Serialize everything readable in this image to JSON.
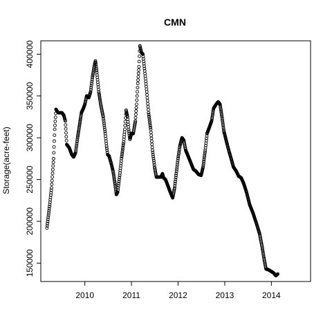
{
  "chart_data": {
    "type": "scatter",
    "title": "CMN",
    "xlabel": "",
    "ylabel": "Storage(acre-feet)",
    "x_ticks": [
      "2010",
      "2011",
      "2012",
      "2013",
      "2014"
    ],
    "y_ticks": [
      150000,
      200000,
      250000,
      300000,
      350000,
      400000
    ],
    "y_tick_labels": [
      "150000",
      "200000",
      "250000",
      "300000",
      "350000",
      "400000"
    ],
    "xlim": [
      "2009-01-21",
      "2014-11-04"
    ],
    "ylim": [
      128000,
      416000
    ],
    "grid": false,
    "marker": "open circle",
    "colors": {
      "points": "#000000",
      "axis": "#000000",
      "background": "#ffffff"
    },
    "series": [
      {
        "points": [
          [
            "2009-03-10",
            192000
          ],
          [
            "2009-03-20",
            205000
          ],
          [
            "2009-04-01",
            220000
          ],
          [
            "2009-04-15",
            240000
          ],
          [
            "2009-05-01",
            275000
          ],
          [
            "2009-05-10",
            310000
          ],
          [
            "2009-05-20",
            334000
          ],
          [
            "2009-06-05",
            330000
          ],
          [
            "2009-06-20",
            330000
          ],
          [
            "2009-07-05",
            330000
          ],
          [
            "2009-07-20",
            327000
          ],
          [
            "2009-08-01",
            320000
          ],
          [
            "2009-08-12",
            292000
          ],
          [
            "2009-09-01",
            288000
          ],
          [
            "2009-09-20",
            280000
          ],
          [
            "2009-10-05",
            277000
          ],
          [
            "2009-10-20",
            282000
          ],
          [
            "2009-11-05",
            300000
          ],
          [
            "2009-11-20",
            315000
          ],
          [
            "2009-12-05",
            330000
          ],
          [
            "2009-12-20",
            335000
          ],
          [
            "2010-01-01",
            340000
          ],
          [
            "2010-01-15",
            350000
          ],
          [
            "2010-02-01",
            348000
          ],
          [
            "2010-02-15",
            355000
          ],
          [
            "2010-03-01",
            372000
          ],
          [
            "2010-03-15",
            385000
          ],
          [
            "2010-03-25",
            392000
          ],
          [
            "2010-04-05",
            378000
          ],
          [
            "2010-04-20",
            355000
          ],
          [
            "2010-05-05",
            340000
          ],
          [
            "2010-05-25",
            325000
          ],
          [
            "2010-06-10",
            305000
          ],
          [
            "2010-06-20",
            290000
          ],
          [
            "2010-06-28",
            280000
          ],
          [
            "2010-07-10",
            278000
          ],
          [
            "2010-07-25",
            270000
          ],
          [
            "2010-08-10",
            260000
          ],
          [
            "2010-08-25",
            245000
          ],
          [
            "2010-09-05",
            232000
          ],
          [
            "2010-09-15",
            235000
          ],
          [
            "2010-10-01",
            255000
          ],
          [
            "2010-10-15",
            275000
          ],
          [
            "2010-11-01",
            295000
          ],
          [
            "2010-11-10",
            310000
          ],
          [
            "2010-11-20",
            333000
          ],
          [
            "2010-12-01",
            325000
          ],
          [
            "2010-12-10",
            310000
          ],
          [
            "2010-12-20",
            298000
          ],
          [
            "2011-01-01",
            305000
          ],
          [
            "2011-01-15",
            305000
          ],
          [
            "2011-02-01",
            320000
          ],
          [
            "2011-02-10",
            340000
          ],
          [
            "2011-02-20",
            365000
          ],
          [
            "2011-03-01",
            385000
          ],
          [
            "2011-03-08",
            410000
          ],
          [
            "2011-03-20",
            402000
          ],
          [
            "2011-04-01",
            400000
          ],
          [
            "2011-04-15",
            380000
          ],
          [
            "2011-05-01",
            355000
          ],
          [
            "2011-05-15",
            330000
          ],
          [
            "2011-06-01",
            310000
          ],
          [
            "2011-06-15",
            285000
          ],
          [
            "2011-07-01",
            265000
          ],
          [
            "2011-07-15",
            253000
          ],
          [
            "2011-08-01",
            253000
          ],
          [
            "2011-08-20",
            253000
          ],
          [
            "2011-09-01",
            257000
          ],
          [
            "2011-09-10",
            252000
          ],
          [
            "2011-09-25",
            250000
          ],
          [
            "2011-10-15",
            242000
          ],
          [
            "2011-11-01",
            235000
          ],
          [
            "2011-11-20",
            228000
          ],
          [
            "2011-12-05",
            240000
          ],
          [
            "2011-12-20",
            260000
          ],
          [
            "2012-01-01",
            275000
          ],
          [
            "2012-01-15",
            290000
          ],
          [
            "2012-02-01",
            300000
          ],
          [
            "2012-02-15",
            297000
          ],
          [
            "2012-03-01",
            285000
          ],
          [
            "2012-03-20",
            278000
          ],
          [
            "2012-04-10",
            270000
          ],
          [
            "2012-05-01",
            262000
          ],
          [
            "2012-05-20",
            260000
          ],
          [
            "2012-06-10",
            256000
          ],
          [
            "2012-06-30",
            255000
          ],
          [
            "2012-07-15",
            265000
          ],
          [
            "2012-08-01",
            285000
          ],
          [
            "2012-08-15",
            305000
          ],
          [
            "2012-09-01",
            312000
          ],
          [
            "2012-09-20",
            320000
          ],
          [
            "2012-10-05",
            335000
          ],
          [
            "2012-10-25",
            340000
          ],
          [
            "2012-11-10",
            343000
          ],
          [
            "2012-11-25",
            340000
          ],
          [
            "2012-12-10",
            325000
          ],
          [
            "2012-12-25",
            308000
          ],
          [
            "2013-01-15",
            295000
          ],
          [
            "2013-02-01",
            285000
          ],
          [
            "2013-02-20",
            275000
          ],
          [
            "2013-03-10",
            265000
          ],
          [
            "2013-04-01",
            260000
          ],
          [
            "2013-04-20",
            254000
          ],
          [
            "2013-05-10",
            252000
          ],
          [
            "2013-05-30",
            245000
          ],
          [
            "2013-06-20",
            235000
          ],
          [
            "2013-07-15",
            220000
          ],
          [
            "2013-08-10",
            210000
          ],
          [
            "2013-09-05",
            198000
          ],
          [
            "2013-10-01",
            185000
          ],
          [
            "2013-10-20",
            170000
          ],
          [
            "2013-11-05",
            155000
          ],
          [
            "2013-11-20",
            143000
          ],
          [
            "2013-12-10",
            142000
          ],
          [
            "2014-01-01",
            140000
          ],
          [
            "2014-01-20",
            138000
          ],
          [
            "2014-02-05",
            135000
          ],
          [
            "2014-02-20",
            137000
          ]
        ]
      }
    ]
  }
}
